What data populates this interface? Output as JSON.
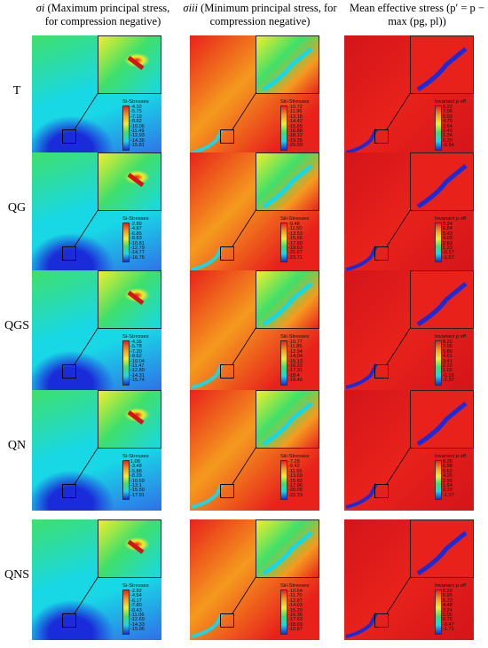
{
  "headers": {
    "col1_sym": "σi",
    "col1_text": "(Maximum principal stress, for compression negative)",
    "col2_sym": "σiii",
    "col2_text": "(Minimum principal stress, for compression negative)",
    "col3_text": "Mean effective stress (p′ = p − max (pg, pl))"
  },
  "rows": [
    {
      "label": "T",
      "cb1": {
        "title": "Si-Stresses",
        "ticks": [
          "-4.32",
          "-5.75",
          "-7.19",
          "-8.62",
          "-10.06",
          "-11.49",
          "-12.93",
          "-14.36",
          "-15.81"
        ]
      },
      "cb2": {
        "title": "Siii-Stresses",
        "ticks": [
          "-10.72",
          "-11.96",
          "-13.18",
          "-14.42",
          "-15.65",
          "-16.88",
          "-18.12",
          "-19.35",
          "-20.59"
        ]
      },
      "cb3": {
        "title": "Invariant p eff",
        "ticks": [
          "8.22",
          "7.06",
          "5.93",
          "4.78",
          "3.64",
          "2.49",
          "1.34",
          "0.20",
          "-0.94"
        ]
      }
    },
    {
      "label": "QG",
      "cb1": {
        "title": "Si-Stresses",
        "ticks": [
          "-2.89",
          "-4.87",
          "-6.85",
          "-8.83",
          "-10.81",
          "-12.79",
          "-14.77",
          "-16.75"
        ]
      },
      "cb2": {
        "title": "Siii-Stresses",
        "ticks": [
          "-9.48",
          "-11.50",
          "-13.53",
          "-15.56",
          "-17.60",
          "-19.63",
          "-21.67",
          "-23.71"
        ]
      },
      "cb3": {
        "title": "Invariant p eff",
        "ticks": [
          "8.24",
          "6.84",
          "5.43",
          "4.03",
          "2.63",
          "1.23",
          "-0.17",
          "-1.57"
        ]
      }
    },
    {
      "label": "QGS",
      "cb1": {
        "title": "Si-Stresses",
        "ticks": [
          "-4.36",
          "-5.78",
          "-7.20",
          "-8.62",
          "-10.04",
          "-11.47",
          "-12.89",
          "-14.31",
          "-15.74"
        ]
      },
      "cb2": {
        "title": "Siii-Stresses",
        "ticks": [
          "-10.77",
          "-11.85",
          "-12.94",
          "-14.04",
          "-15.13",
          "-16.22",
          "-17.31",
          "-18.4",
          "-19.49"
        ]
      },
      "cb3": {
        "title": "Invariant p eff",
        "ticks": [
          "8.20",
          "7.00",
          "5.80",
          "4.61",
          "3.41",
          "2.22",
          "1.02",
          "-0.16",
          "-1.37"
        ]
      }
    },
    {
      "label": "QN",
      "cb1": {
        "title": "Si-Stresses",
        "ticks": [
          "1.08",
          "-3.48",
          "-5.88",
          "-8.29",
          "-10.69",
          "-13.1",
          "-15.50",
          "-17.91"
        ]
      },
      "cb2": {
        "title": "Siii-Stresses",
        "ticks": [
          "-7.29",
          "-9.42",
          "-11.55",
          "-13.69",
          "-15.82",
          "-17.96",
          "-20.09",
          "-22.23"
        ]
      },
      "cb3": {
        "title": "Invariant p eff",
        "ticks": [
          "8.26",
          "6.98",
          "5.62",
          "4.26",
          "2.90",
          "1.54",
          "0.18",
          "-1.17"
        ]
      }
    },
    {
      "label": "QNS",
      "cb1": {
        "title": "Si-Stresses",
        "ticks": [
          "-2.92",
          "-4.54",
          "-6.17",
          "-7.80",
          "-9.43",
          "-11.06",
          "-12.69",
          "-14.33",
          "-15.96"
        ]
      },
      "cb2": {
        "title": "Siii-Stresses",
        "ticks": [
          "-10.54",
          "-11.70",
          "-12.87",
          "-14.03",
          "-15.20",
          "-16.36",
          "-17.53",
          "-18.69",
          "-19.87"
        ]
      },
      "cb3": {
        "title": "Invariant p eff",
        "ticks": [
          "8.20",
          "6.95",
          "5.72",
          "4.48",
          "3.24",
          "2.00",
          "0.76",
          "-0.47",
          "-1.71"
        ]
      }
    }
  ],
  "colors": {
    "blue": "#1a2bd9",
    "cyan": "#18d8e6",
    "green": "#3fe06a",
    "yellow": "#f2ee2a",
    "orange": "#f59a1e",
    "red": "#e8221b",
    "darkred": "#d4141a"
  }
}
